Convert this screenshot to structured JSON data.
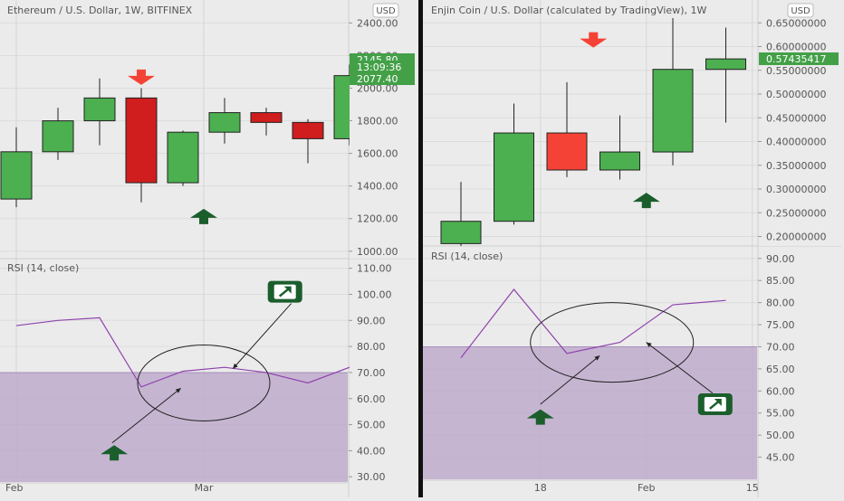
{
  "colors": {
    "up": "#4caf50",
    "down_left": "#d01d1d",
    "down_right": "#f44336",
    "rsi_line": "#8e44ad",
    "overbought_fill": "#b9a3c8",
    "tag_green": "#43a047",
    "arrow_red": "#f44336",
    "arrow_green": "#1b5e2c"
  },
  "chart_data": [
    {
      "type": "candlestick",
      "title": "Ethereum / U.S. Dollar, 1W, BITFINEX",
      "currency_badge": "USD",
      "ylim": [
        960,
        2430
      ],
      "yticks": [
        1000,
        1200,
        1400,
        1600,
        1800,
        2000,
        2200,
        2400
      ],
      "ytick_labels": [
        "1000.00",
        "1200.00",
        "1400.00",
        "1600.00",
        "1800.00",
        "2000.00",
        "2200.00",
        "2400.00"
      ],
      "x_labels": [
        {
          "label": "Feb",
          "index": 0
        },
        {
          "label": "Mar",
          "index": 4.5
        }
      ],
      "candles": [
        {
          "o": 1320,
          "h": 1760,
          "l": 1270,
          "c": 1610
        },
        {
          "o": 1610,
          "h": 1880,
          "l": 1560,
          "c": 1800
        },
        {
          "o": 1800,
          "h": 2060,
          "l": 1650,
          "c": 1940
        },
        {
          "o": 1940,
          "h": 2000,
          "l": 1300,
          "c": 1420
        },
        {
          "o": 1420,
          "h": 1740,
          "l": 1400,
          "c": 1730
        },
        {
          "o": 1730,
          "h": 1940,
          "l": 1660,
          "c": 1850
        },
        {
          "o": 1850,
          "h": 1880,
          "l": 1710,
          "c": 1790
        },
        {
          "o": 1790,
          "h": 1810,
          "l": 1540,
          "c": 1690
        },
        {
          "o": 1690,
          "h": 2145,
          "l": 1650,
          "c": 2077
        }
      ],
      "price_tags": [
        {
          "value": 2145.8,
          "label": "2145.80"
        },
        {
          "value": 2100,
          "label": "13:09:36"
        },
        {
          "value": 2077.4,
          "label": "2077.40"
        }
      ],
      "annotations": [
        {
          "type": "arrow-down",
          "index": 3,
          "value": 2070
        },
        {
          "type": "arrow-up",
          "index": 4.5,
          "value": 1210
        }
      ],
      "rsi": {
        "title": "RSI (14, close)",
        "ylim": [
          28,
          113
        ],
        "yticks": [
          30,
          40,
          50,
          60,
          70,
          80,
          90,
          100,
          110
        ],
        "ytick_labels": [
          "30.00",
          "40.00",
          "50.00",
          "60.00",
          "70.00",
          "80.00",
          "90.00",
          "100.00",
          "110.00"
        ],
        "overbought": 70,
        "values": [
          88,
          90,
          91,
          64.5,
          70.5,
          72,
          70,
          66,
          72
        ],
        "circle": {
          "index": 4.5,
          "value": 66
        },
        "pointer_up": {
          "from_index": 2.3,
          "from_value": 43,
          "to_index": 3.95,
          "to_value": 64
        },
        "pointer_box": {
          "from_index": 6.6,
          "from_value": 96.5,
          "to_index": 5.2,
          "to_value": 71.5
        },
        "up_marker": {
          "index": 2.35,
          "value": 39
        },
        "box_marker": {
          "index": 6.45,
          "value": 101
        }
      }
    },
    {
      "type": "candlestick",
      "title": "Enjin Coin / U.S. Dollar (calculated by TradingView), 1W",
      "currency_badge": "USD",
      "ylim": [
        0.18,
        0.66
      ],
      "yticks": [
        0.2,
        0.25,
        0.3,
        0.35,
        0.4,
        0.45,
        0.5,
        0.55,
        0.6,
        0.65
      ],
      "ytick_labels": [
        "0.20000000",
        "0.25000000",
        "0.30000000",
        "0.35000000",
        "0.40000000",
        "0.45000000",
        "0.50000000",
        "0.55000000",
        "0.60000000",
        "0.65000000"
      ],
      "x_labels": [
        {
          "label": "18",
          "index": 1.5
        },
        {
          "label": "Feb",
          "index": 3.5
        },
        {
          "label": "15",
          "index": 5.5
        }
      ],
      "candles": [
        {
          "o": 0.185,
          "h": 0.315,
          "l": 0.18,
          "c": 0.232
        },
        {
          "o": 0.232,
          "h": 0.48,
          "l": 0.225,
          "c": 0.418
        },
        {
          "o": 0.418,
          "h": 0.525,
          "l": 0.325,
          "c": 0.34
        },
        {
          "o": 0.34,
          "h": 0.455,
          "l": 0.32,
          "c": 0.378
        },
        {
          "o": 0.378,
          "h": 0.66,
          "l": 0.35,
          "c": 0.552
        },
        {
          "o": 0.552,
          "h": 0.64,
          "l": 0.44,
          "c": 0.574
        }
      ],
      "price_tags": [
        {
          "value": 0.57435417,
          "label": "0.57435417"
        }
      ],
      "annotations": [
        {
          "type": "arrow-down",
          "index": 2.5,
          "value": 0.615
        },
        {
          "type": "arrow-up",
          "index": 3.5,
          "value": 0.275
        }
      ],
      "rsi": {
        "title": "RSI (14, close)",
        "ylim": [
          40,
          92
        ],
        "yticks": [
          45,
          50,
          55,
          60,
          65,
          70,
          75,
          80,
          85,
          90
        ],
        "ytick_labels": [
          "45.00",
          "50.00",
          "55.00",
          "60.00",
          "65.00",
          "70.00",
          "75.00",
          "80.00",
          "85.00",
          "90.00"
        ],
        "overbought": 70,
        "values": [
          67.5,
          83,
          68.5,
          71,
          79.5,
          80.5
        ],
        "circle": {
          "index": 2.85,
          "value": 71
        },
        "pointer_up": {
          "from_index": 1.5,
          "from_value": 57,
          "to_index": 2.62,
          "to_value": 68
        },
        "pointer_box": {
          "from_index": 4.75,
          "from_value": 59.5,
          "to_index": 3.5,
          "to_value": 71
        },
        "up_marker": {
          "index": 1.5,
          "value": 54
        },
        "box_marker": {
          "index": 4.8,
          "value": 57
        }
      }
    }
  ]
}
